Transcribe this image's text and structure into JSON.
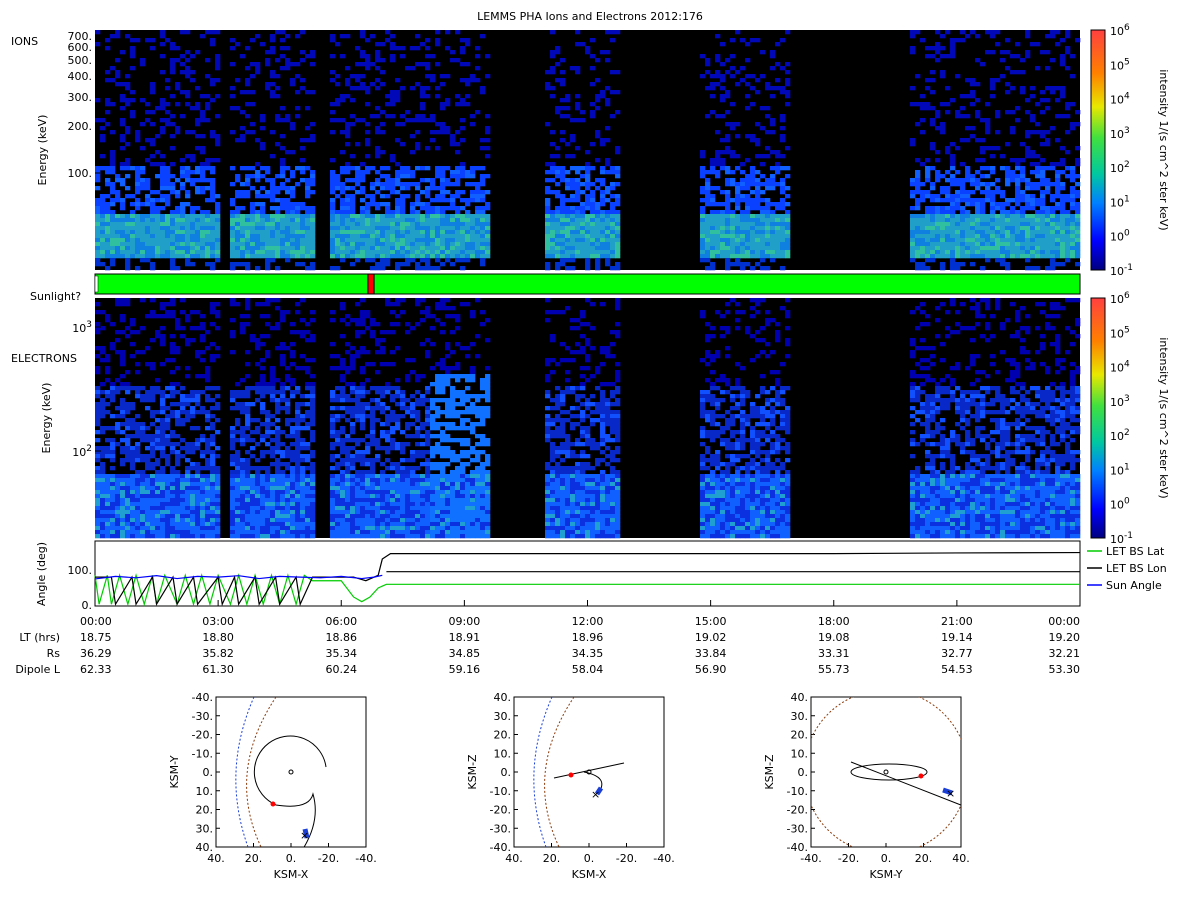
{
  "title": "LEMMS PHA Ions and Electrons  2012:176",
  "colors": {
    "background": "#000000",
    "sunlight_bar": "#00ff00",
    "sunlight_shadow": "#ff0000",
    "let_bs_lat": "#00cc00",
    "let_bs_lon": "#000000",
    "sun_angle": "#0000ff",
    "trajectory": "#000000",
    "bow_shock": "#8b3a0a",
    "magnetopause": "#1a3fd6",
    "position_dot": "#ff0000",
    "position_x": "#ff0000"
  },
  "chart_data": [
    {
      "type": "heatmap",
      "panel_label": "IONS",
      "ylabel": "Energy (keV)",
      "yscale": "log",
      "yticks": [
        "100.",
        "200.",
        "300.",
        "400.",
        "500.",
        "600.",
        "700."
      ],
      "x_range_hours": [
        0,
        24
      ],
      "data_gaps_hours": [
        [
          3.02,
          3.28
        ],
        [
          5.3,
          5.75
        ],
        [
          9.6,
          11.0
        ],
        [
          12.8,
          14.8
        ],
        [
          15.05,
          15.15
        ],
        [
          16.9,
          19.9
        ]
      ],
      "colorbar": {
        "label": "intensity 1/(s cm^2 ster keV)",
        "ticks": [
          "10^6",
          "10^5",
          "10^4",
          "10^3",
          "10^2",
          "10^1",
          "10^0",
          "10^-1"
        ]
      }
    },
    {
      "type": "bar",
      "panel_label": "Sunlight?",
      "x_range_hours": [
        0,
        24
      ],
      "shadow_intervals_hours": [
        [
          6.65,
          6.8
        ]
      ]
    },
    {
      "type": "heatmap",
      "panel_label": "ELECTRONS",
      "ylabel": "Energy (keV)",
      "yscale": "log",
      "yticks": [
        "10^3",
        "10^2"
      ],
      "x_range_hours": [
        0,
        24
      ],
      "data_gaps_hours": [
        [
          3.02,
          3.28
        ],
        [
          5.3,
          5.75
        ],
        [
          9.6,
          11.0
        ],
        [
          12.8,
          14.8
        ],
        [
          15.05,
          15.15
        ],
        [
          16.9,
          19.9
        ]
      ],
      "colorbar": {
        "label": "intensity 1/(s cm^2 ster keV)",
        "ticks": [
          "10^6",
          "10^5",
          "10^4",
          "10^3",
          "10^2",
          "10^1",
          "10^0",
          "10^-1"
        ]
      }
    },
    {
      "type": "line",
      "ylabel": "Angle (deg)",
      "yticks": [
        "100.",
        "0."
      ],
      "ylim": [
        0,
        180
      ],
      "x_range_hours": [
        0,
        24
      ],
      "series": [
        {
          "name": "LET BS Lat",
          "x": [
            0,
            0.1,
            0.3,
            0.4,
            0.6,
            0.8,
            1.0,
            1.2,
            1.4,
            1.5,
            1.7,
            2.0,
            2.2,
            2.4,
            2.6,
            2.8,
            3.0,
            3.3,
            3.5,
            3.7,
            3.9,
            4.1,
            4.3,
            4.5,
            4.7,
            4.9,
            5.1,
            5.3,
            5.8,
            6.0,
            6.3,
            6.5,
            6.7,
            6.9,
            7.1,
            7.5,
            8,
            9,
            12,
            15,
            18,
            21,
            24
          ],
          "y": [
            85,
            5,
            85,
            5,
            85,
            5,
            85,
            5,
            85,
            5,
            85,
            5,
            85,
            5,
            85,
            5,
            85,
            5,
            85,
            5,
            85,
            5,
            85,
            5,
            85,
            5,
            85,
            70,
            70,
            70,
            25,
            12,
            25,
            50,
            60,
            60,
            60,
            60,
            60,
            60,
            60,
            60,
            60
          ]
        },
        {
          "name": "LET BS Lon",
          "x": [
            0,
            0.4,
            0.5,
            0.9,
            1.0,
            1.4,
            1.5,
            1.9,
            2.0,
            2.4,
            2.5,
            3.0,
            3.1,
            3.4,
            3.5,
            3.9,
            4.0,
            4.4,
            4.5,
            4.9,
            5.0,
            5.3,
            5.8,
            6.0,
            6.3,
            6.6,
            6.9,
            7.0,
            7.2,
            8,
            9,
            12,
            15,
            18,
            21,
            24
          ],
          "y": [
            80,
            80,
            5,
            80,
            5,
            80,
            5,
            80,
            5,
            80,
            5,
            80,
            5,
            80,
            5,
            80,
            5,
            80,
            5,
            80,
            5,
            80,
            80,
            80,
            80,
            70,
            85,
            130,
            145,
            145,
            145,
            145,
            145,
            145,
            147,
            148
          ],
          "y_secondary": [
            95,
            95
          ]
        },
        {
          "name": "Sun Angle",
          "x": [
            0,
            0.5,
            1,
            1.5,
            2,
            2.5,
            3,
            3.5,
            4,
            4.5,
            5,
            5.5,
            6,
            6.5,
            6.8,
            7.0
          ],
          "y": [
            75,
            82,
            78,
            84,
            76,
            82,
            80,
            84,
            76,
            82,
            80,
            78,
            82,
            76,
            80,
            85
          ]
        }
      ]
    },
    {
      "type": "table",
      "row_labels": [
        "LT (hrs)",
        "Rs",
        "Dipole L"
      ],
      "times": [
        "00:00",
        "03:00",
        "06:00",
        "09:00",
        "12:00",
        "15:00",
        "18:00",
        "21:00",
        "00:00"
      ],
      "LT": [
        "18.75",
        "18.80",
        "18.86",
        "18.91",
        "18.96",
        "19.02",
        "19.08",
        "19.14",
        "19.20"
      ],
      "Rs": [
        "36.29",
        "35.82",
        "35.34",
        "34.85",
        "34.35",
        "33.84",
        "33.31",
        "32.77",
        "32.21"
      ],
      "DipoleL": [
        "62.33",
        "61.30",
        "60.24",
        "59.16",
        "58.04",
        "56.90",
        "55.73",
        "54.53",
        "53.30"
      ]
    },
    {
      "type": "scatter",
      "xlabel": "KSM-X",
      "ylabel": "KSM-Y",
      "xticks": [
        "40.",
        "20.",
        "0.",
        "-20.",
        "-40."
      ],
      "yticks": [
        "-40.",
        "-30.",
        "-20.",
        "-10.",
        "0.",
        "10.",
        "20.",
        "30.",
        "40."
      ],
      "xlim": [
        40,
        -40
      ],
      "ylim": [
        -40,
        40
      ],
      "orbit_center": [
        0,
        0
      ]
    },
    {
      "type": "scatter",
      "xlabel": "KSM-X",
      "ylabel": "KSM-Z",
      "xticks": [
        "40.",
        "20.",
        "0.",
        "-20.",
        "-40."
      ],
      "yticks": [
        "40.",
        "30.",
        "20.",
        "10.",
        "0.",
        "-10.",
        "-20.",
        "-30.",
        "-40."
      ],
      "xlim": [
        40,
        -40
      ],
      "ylim": [
        -40,
        40
      ]
    },
    {
      "type": "scatter",
      "xlabel": "KSM-Y",
      "ylabel": "KSM-Z",
      "xticks": [
        "-40.",
        "-20.",
        "0.",
        "20.",
        "40."
      ],
      "yticks": [
        "40.",
        "30.",
        "20.",
        "10.",
        "0.",
        "-10.",
        "-20.",
        "-30.",
        "-40."
      ],
      "xlim": [
        -40,
        40
      ],
      "ylim": [
        -40,
        40
      ]
    }
  ]
}
